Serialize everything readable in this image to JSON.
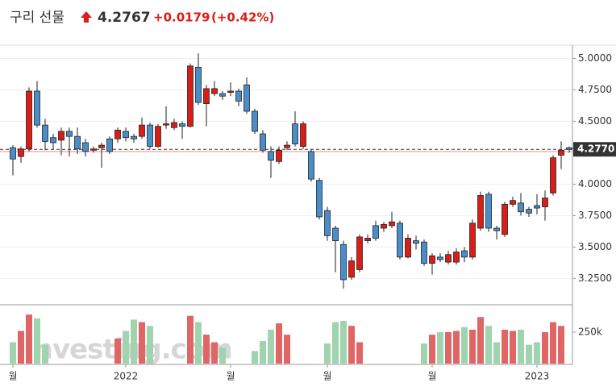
{
  "header": {
    "name": "구리 선물",
    "price": "4.2767",
    "change": "+0.0179",
    "change_pct": "(+0.42%)"
  },
  "chart_data": {
    "type": "candlestick",
    "watermark": "Investing.com",
    "categories": [
      "월",
      null,
      null,
      null,
      null,
      null,
      null,
      null,
      null,
      null,
      null,
      null,
      null,
      null,
      "2022",
      null,
      null,
      null,
      null,
      null,
      null,
      null,
      null,
      null,
      null,
      null,
      null,
      "월",
      null,
      null,
      null,
      null,
      null,
      null,
      null,
      null,
      null,
      null,
      null,
      "월",
      null,
      null,
      null,
      null,
      null,
      null,
      null,
      null,
      null,
      null,
      null,
      null,
      "월",
      null,
      null,
      null,
      null,
      null,
      null,
      null,
      null,
      null,
      null,
      null,
      null,
      "2023",
      null,
      null,
      null,
      null
    ],
    "open": [
      4.29,
      4.22,
      4.28,
      4.74,
      4.47,
      4.37,
      4.35,
      4.42,
      4.38,
      4.33,
      4.27,
      4.29,
      4.36,
      4.36,
      4.42,
      4.38,
      4.38,
      4.47,
      4.3,
      4.47,
      4.45,
      4.48,
      4.46,
      4.93,
      4.64,
      4.72,
      4.72,
      4.73,
      4.74,
      4.79,
      4.58,
      4.4,
      4.26,
      4.18,
      4.29,
      4.48,
      4.3,
      4.26,
      4.03,
      3.79,
      3.65,
      3.52,
      3.26,
      3.32,
      3.55,
      3.67,
      3.65,
      3.67,
      3.69,
      3.42,
      3.55,
      3.54,
      3.37,
      3.42,
      3.38,
      3.38,
      3.47,
      3.42,
      3.65,
      3.92,
      3.65,
      3.6,
      3.84,
      3.85,
      3.8,
      3.83,
      3.82,
      3.93,
      4.23,
      4.29
    ],
    "high": [
      4.31,
      4.3,
      4.77,
      4.82,
      4.52,
      4.4,
      4.45,
      4.45,
      4.45,
      4.36,
      4.3,
      4.33,
      4.38,
      4.45,
      4.45,
      4.4,
      4.53,
      4.49,
      4.48,
      4.62,
      4.52,
      4.5,
      4.96,
      5.04,
      4.79,
      4.82,
      4.74,
      4.81,
      4.76,
      4.85,
      4.6,
      4.43,
      4.3,
      4.3,
      4.34,
      4.58,
      4.5,
      4.28,
      4.05,
      3.82,
      3.67,
      3.55,
      3.42,
      3.6,
      3.6,
      3.71,
      3.7,
      3.78,
      3.71,
      3.6,
      3.59,
      3.56,
      3.45,
      3.45,
      3.47,
      3.49,
      3.5,
      3.72,
      3.94,
      3.94,
      3.67,
      3.86,
      3.9,
      3.93,
      3.82,
      3.92,
      3.95,
      4.23,
      4.34,
      4.3
    ],
    "low": [
      4.07,
      4.17,
      4.26,
      4.45,
      4.27,
      4.28,
      4.23,
      4.22,
      4.24,
      4.22,
      4.25,
      4.13,
      4.24,
      4.33,
      4.34,
      4.33,
      4.36,
      4.28,
      4.29,
      4.44,
      4.43,
      4.36,
      4.45,
      4.63,
      4.46,
      4.7,
      4.67,
      4.7,
      4.62,
      4.56,
      4.4,
      4.25,
      4.05,
      4.16,
      4.27,
      4.3,
      4.28,
      4.02,
      3.72,
      3.55,
      3.3,
      3.17,
      3.24,
      3.3,
      3.53,
      3.55,
      3.62,
      3.65,
      3.4,
      3.41,
      3.48,
      3.35,
      3.28,
      3.38,
      3.36,
      3.36,
      3.38,
      3.4,
      3.63,
      3.62,
      3.56,
      3.58,
      3.82,
      3.75,
      3.74,
      3.76,
      3.71,
      3.91,
      4.12,
      4.25
    ],
    "close": [
      4.2,
      4.28,
      4.74,
      4.47,
      4.34,
      4.33,
      4.42,
      4.38,
      4.28,
      4.26,
      4.28,
      4.31,
      4.26,
      4.43,
      4.37,
      4.36,
      4.47,
      4.3,
      4.46,
      4.48,
      4.49,
      4.46,
      4.94,
      4.65,
      4.76,
      4.76,
      4.7,
      4.74,
      4.66,
      4.58,
      4.42,
      4.27,
      4.19,
      4.27,
      4.31,
      4.32,
      4.48,
      4.04,
      3.74,
      3.59,
      3.55,
      3.24,
      3.39,
      3.58,
      3.57,
      3.57,
      3.68,
      3.7,
      3.42,
      3.57,
      3.53,
      3.37,
      3.43,
      3.4,
      3.44,
      3.46,
      3.42,
      3.69,
      3.91,
      3.65,
      3.63,
      3.84,
      3.87,
      3.78,
      3.77,
      3.81,
      3.89,
      4.21,
      4.27,
      4.277
    ],
    "volume": [
      170000,
      260000,
      390000,
      360000,
      150000,
      null,
      null,
      null,
      null,
      null,
      null,
      null,
      null,
      200000,
      260000,
      350000,
      330000,
      300000,
      null,
      null,
      null,
      null,
      380000,
      330000,
      230000,
      170000,
      130000,
      null,
      null,
      null,
      100000,
      180000,
      270000,
      320000,
      230000,
      null,
      null,
      null,
      null,
      160000,
      330000,
      340000,
      300000,
      170000,
      null,
      null,
      null,
      null,
      null,
      null,
      null,
      160000,
      230000,
      250000,
      250000,
      260000,
      290000,
      270000,
      370000,
      300000,
      170000,
      270000,
      260000,
      270000,
      150000,
      170000,
      250000,
      330000,
      300000,
      null
    ],
    "up_color": "#d91e18",
    "down_color": "#4a8ec9",
    "volume_up_color": "#e06666",
    "volume_down_color": "#9fd4ae",
    "ylim": [
      3.06,
      5.08
    ],
    "yticks": [
      {
        "value": 3.25,
        "label": "3.2500"
      },
      {
        "value": 3.5,
        "label": "3.5000"
      },
      {
        "value": 3.75,
        "label": "3.7500"
      },
      {
        "value": 4.0,
        "label": "4.0000"
      },
      {
        "value": 4.5,
        "label": "4.5000"
      },
      {
        "value": 4.75,
        "label": "4.7500"
      },
      {
        "value": 5.0,
        "label": "5.0000"
      }
    ],
    "volume_lim": [
      0,
      455000
    ],
    "volume_ticks": [
      {
        "value": 250000,
        "label": "250k"
      }
    ],
    "last_price": {
      "value": 4.277,
      "label": "4.2770"
    },
    "prev_close": 4.2588,
    "grid": true
  }
}
